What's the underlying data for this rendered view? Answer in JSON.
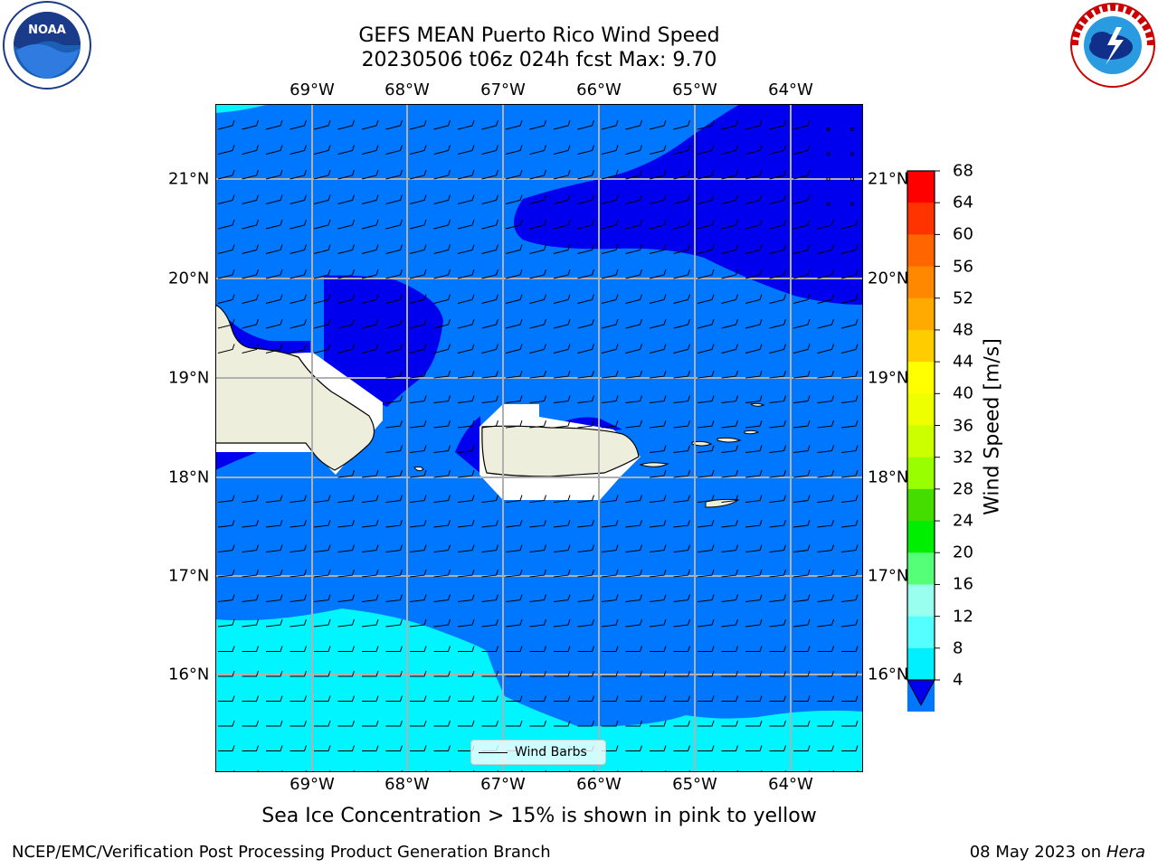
{
  "header": {
    "title_line1": "GEFS MEAN Puerto Rico Wind Speed",
    "title_line2": "20230506 t06z 024h fcst   Max: 9.70"
  },
  "logos": {
    "left": {
      "text": "NOAA",
      "ring_text": "NATIONAL OCEANIC AND ATMOSPHERIC ADMINISTRATION",
      "bottom_text": "U.S. DEPARTMENT OF COMMERCE"
    },
    "right": {
      "ring_text": "NATIONAL WEATHER SERVICE"
    }
  },
  "map": {
    "lon_labels": [
      "69°W",
      "68°W",
      "67°W",
      "66°W",
      "65°W",
      "64°W"
    ],
    "lat_labels": [
      "21°N",
      "20°N",
      "19°N",
      "18°N",
      "17°N",
      "16°N"
    ],
    "legend_label": "Wind Barbs",
    "colors": {
      "land": "#eeeedc",
      "band_4_8": "#0077ff",
      "band_below_4": "#0000ee",
      "band_8_12": "#00f5ff",
      "masked": "#ffffff",
      "grid": "#b0b0b0"
    }
  },
  "colorbar": {
    "label": "Wind Speed [m/s]",
    "ticks": [
      "68",
      "64",
      "60",
      "56",
      "52",
      "48",
      "44",
      "40",
      "36",
      "32",
      "28",
      "24",
      "20",
      "16",
      "12",
      "8",
      "4"
    ],
    "colors_top_to_bottom": [
      "#ff0000",
      "#ff3300",
      "#ff6600",
      "#ff8800",
      "#ffaa00",
      "#ffcc00",
      "#ffff00",
      "#eeff00",
      "#ccff00",
      "#99ff00",
      "#44dd00",
      "#00ee00",
      "#55ff77",
      "#99ffee",
      "#55ffff",
      "#00f0ff",
      "#0077ff"
    ],
    "extend_color": "#0000ee"
  },
  "footer": {
    "subtitle": "Sea Ice Concentration > 15% is shown in pink to yellow",
    "left": "NCEP/EMC/Verification Post Processing Product Generation Branch",
    "right_date": "08 May 2023 on",
    "right_host": "Hera"
  }
}
